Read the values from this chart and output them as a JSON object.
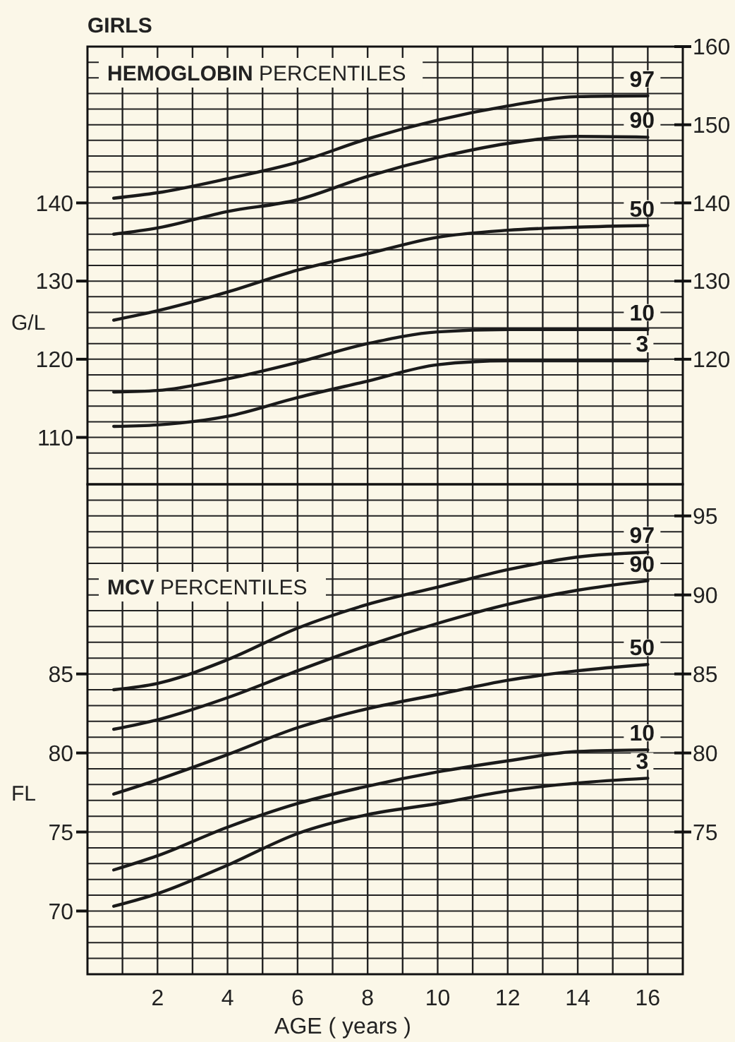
{
  "chart_data": [
    {
      "type": "line",
      "title": "GIRLS",
      "subtitle": "HEMOGLOBIN PERCENTILES",
      "ylabel": "G/L",
      "xlim": [
        0,
        17
      ],
      "xticks": [
        {
          "value": 1,
          "label": null
        },
        2,
        {
          "value": 3,
          "label": null
        },
        4,
        {
          "value": 5,
          "label": null
        },
        6,
        {
          "value": 7,
          "label": null
        },
        8,
        {
          "value": 9,
          "label": null
        },
        10,
        {
          "value": 11,
          "label": null
        },
        12,
        {
          "value": 13,
          "label": null
        },
        14,
        {
          "value": 15,
          "label": null
        },
        16
      ],
      "ylim": [
        104,
        160
      ],
      "yticks": [
        {
          "value": 104,
          "label": null
        },
        {
          "value": 106,
          "label": null
        },
        {
          "value": 108,
          "label": null
        },
        110,
        {
          "value": 112,
          "label": null
        },
        {
          "value": 114,
          "label": null
        },
        {
          "value": 116,
          "label": null
        },
        {
          "value": 118,
          "label": null
        },
        120,
        {
          "value": 122,
          "label": null
        },
        {
          "value": 124,
          "label": null
        },
        {
          "value": 126,
          "label": null
        },
        {
          "value": 128,
          "label": null
        },
        130,
        {
          "value": 132,
          "label": null
        },
        {
          "value": 134,
          "label": null
        },
        {
          "value": 136,
          "label": null
        },
        {
          "value": 138,
          "label": null
        },
        140,
        {
          "value": 142,
          "label": null
        },
        {
          "value": 144,
          "label": null
        },
        {
          "value": 146,
          "label": null
        },
        {
          "value": 148,
          "label": null
        },
        {
          "value": 150,
          "label": null
        },
        {
          "value": 152,
          "label": null
        },
        {
          "value": 154,
          "label": null
        },
        {
          "value": 156,
          "label": null
        },
        {
          "value": 158,
          "label": null
        }
      ],
      "y2lim": [
        104,
        160
      ],
      "y2ticks": [
        120,
        130,
        140,
        150,
        160
      ],
      "tick_labels": "y",
      "grid": true,
      "marker": "none",
      "line_style": "solid",
      "x": [
        0.75,
        2,
        4,
        6,
        8,
        10,
        12,
        14,
        16
      ],
      "series": [
        {
          "name": "97",
          "color": "#1a1a1a",
          "values": [
            140.6,
            141.3,
            143.1,
            145.2,
            148.2,
            150.6,
            152.4,
            153.6,
            153.7
          ]
        },
        {
          "name": "90",
          "color": "#1a1a1a",
          "values": [
            136.0,
            136.8,
            138.9,
            140.4,
            143.4,
            145.8,
            147.6,
            148.5,
            148.4
          ]
        },
        {
          "name": "50",
          "color": "#1a1a1a",
          "values": [
            125.0,
            126.2,
            128.6,
            131.4,
            133.5,
            135.6,
            136.5,
            136.9,
            137.1
          ]
        },
        {
          "name": "10",
          "color": "#1a1a1a",
          "values": [
            115.8,
            116.0,
            117.5,
            119.6,
            122.0,
            123.5,
            123.8,
            123.8,
            123.8
          ]
        },
        {
          "name": "3",
          "color": "#1a1a1a",
          "values": [
            111.4,
            111.6,
            112.7,
            115.1,
            117.2,
            119.3,
            119.8,
            119.8,
            119.8
          ]
        }
      ]
    },
    {
      "type": "line",
      "subtitle": "MCV PERCENTILES",
      "xlabel": "AGE ( years )",
      "ylabel": "FL",
      "xlim": [
        0,
        17
      ],
      "xticks": [
        {
          "value": 1,
          "label": null
        },
        2,
        {
          "value": 3,
          "label": null
        },
        4,
        {
          "value": 5,
          "label": null
        },
        6,
        {
          "value": 7,
          "label": null
        },
        8,
        {
          "value": 9,
          "label": null
        },
        10,
        {
          "value": 11,
          "label": null
        },
        12,
        {
          "value": 13,
          "label": null
        },
        14,
        {
          "value": 15,
          "label": null
        },
        16
      ],
      "ylim": [
        66,
        97
      ],
      "yticks": [
        {
          "value": 66,
          "label": null
        },
        {
          "value": 67,
          "label": null
        },
        {
          "value": 68,
          "label": null
        },
        {
          "value": 69,
          "label": null
        },
        70,
        {
          "value": 71,
          "label": null
        },
        {
          "value": 72,
          "label": null
        },
        {
          "value": 73,
          "label": null
        },
        {
          "value": 74,
          "label": null
        },
        75,
        {
          "value": 76,
          "label": null
        },
        {
          "value": 77,
          "label": null
        },
        {
          "value": 78,
          "label": null
        },
        {
          "value": 79,
          "label": null
        },
        80,
        {
          "value": 81,
          "label": null
        },
        {
          "value": 82,
          "label": null
        },
        {
          "value": 83,
          "label": null
        },
        {
          "value": 84,
          "label": null
        },
        85,
        {
          "value": 86,
          "label": null
        },
        {
          "value": 87,
          "label": null
        },
        {
          "value": 88,
          "label": null
        },
        {
          "value": 89,
          "label": null
        },
        {
          "value": 90,
          "label": null
        },
        {
          "value": 91,
          "label": null
        },
        {
          "value": 92,
          "label": null
        },
        {
          "value": 93,
          "label": null
        },
        {
          "value": 94,
          "label": null
        },
        {
          "value": 95,
          "label": null
        },
        {
          "value": 96,
          "label": null
        }
      ],
      "y2lim": [
        66,
        97
      ],
      "y2ticks": [
        75,
        80,
        85,
        90,
        95
      ],
      "grid": true,
      "marker": "none",
      "line_style": "solid",
      "x": [
        0.75,
        2,
        4,
        6,
        8,
        10,
        12,
        14,
        16
      ],
      "series": [
        {
          "name": "97",
          "color": "#1a1a1a",
          "values": [
            84.0,
            84.4,
            85.9,
            87.9,
            89.4,
            90.5,
            91.6,
            92.4,
            92.7
          ]
        },
        {
          "name": "90",
          "color": "#1a1a1a",
          "values": [
            81.5,
            82.1,
            83.5,
            85.2,
            86.8,
            88.2,
            89.4,
            90.3,
            90.9
          ]
        },
        {
          "name": "50",
          "color": "#1a1a1a",
          "values": [
            77.4,
            78.3,
            79.9,
            81.6,
            82.8,
            83.7,
            84.6,
            85.2,
            85.6
          ]
        },
        {
          "name": "10",
          "color": "#1a1a1a",
          "values": [
            72.6,
            73.5,
            75.3,
            76.8,
            77.9,
            78.8,
            79.5,
            80.1,
            80.2
          ]
        },
        {
          "name": "3",
          "color": "#1a1a1a",
          "values": [
            70.3,
            71.1,
            72.9,
            74.9,
            76.1,
            76.8,
            77.6,
            78.1,
            78.4
          ]
        }
      ]
    }
  ]
}
